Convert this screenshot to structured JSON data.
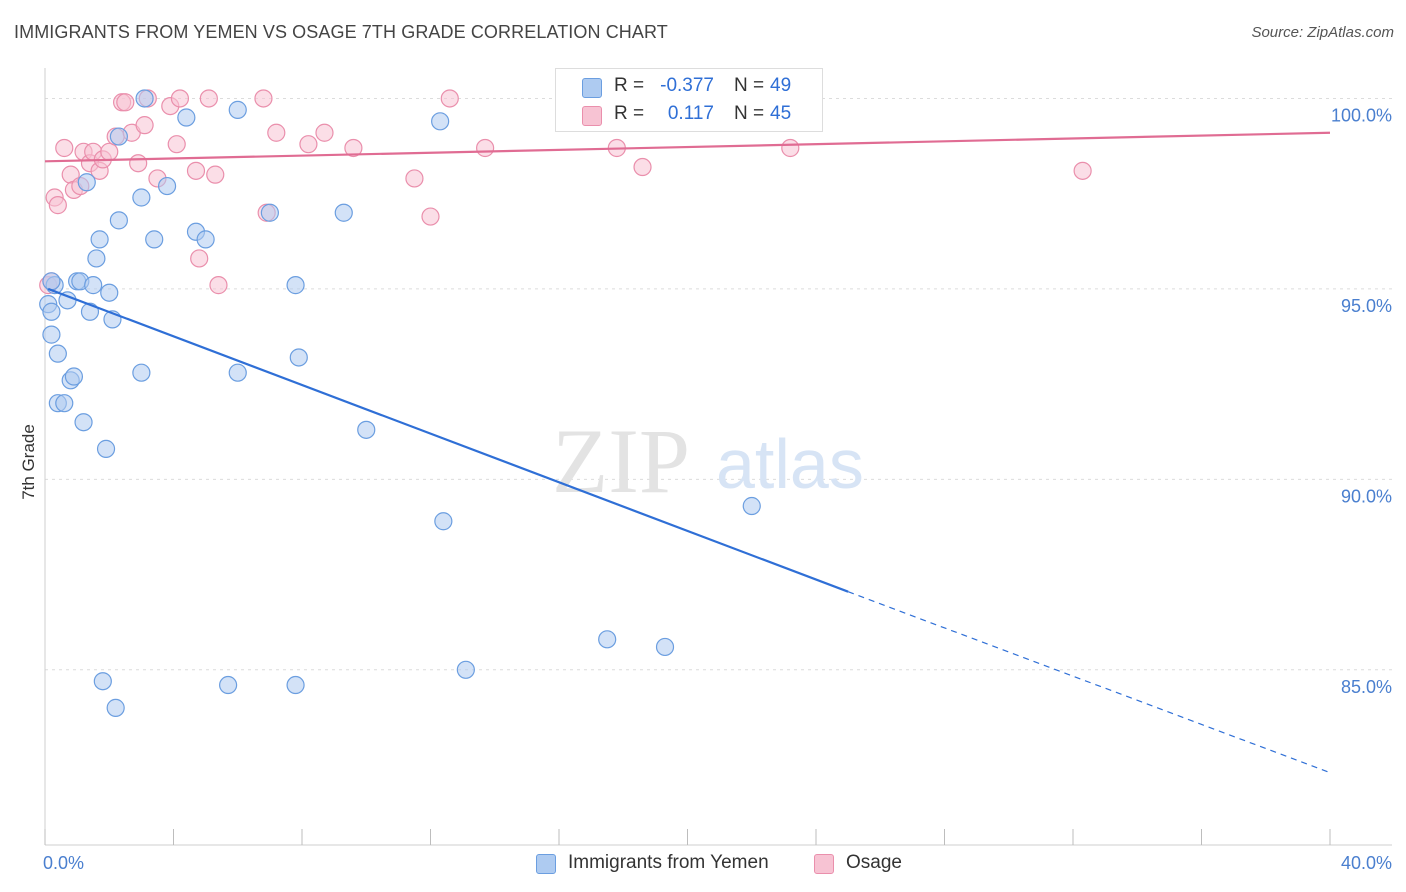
{
  "header": {
    "title": "IMMIGRANTS FROM YEMEN VS OSAGE 7TH GRADE CORRELATION CHART",
    "source": "Source: ZipAtlas.com"
  },
  "watermark": {
    "zip": "ZIP",
    "atlas": "atlas"
  },
  "legend_top": {
    "rows": [
      {
        "r_label": "R =",
        "r_value": "-0.377",
        "n_label": "N =",
        "n_value": "49"
      },
      {
        "r_label": "R =",
        "r_value": "0.117",
        "n_label": "N =",
        "n_value": "45"
      }
    ]
  },
  "legend_bottom": {
    "items": [
      {
        "label": "Immigrants from Yemen"
      },
      {
        "label": "Osage"
      }
    ]
  },
  "colors": {
    "blue_fill": "#aecbf1",
    "blue_stroke": "#6b9ee0",
    "blue_line": "#2f6fd6",
    "pink_fill": "#f7c3d3",
    "pink_stroke": "#ea8fac",
    "pink_line": "#e06c93",
    "tick_text": "#4a7fcf"
  },
  "chart_data": {
    "type": "scatter",
    "title": "IMMIGRANTS FROM YEMEN VS OSAGE 7TH GRADE CORRELATION CHART",
    "xlabel": "",
    "ylabel": "7th Grade",
    "xlim": [
      0,
      40
    ],
    "ylim": [
      80.4,
      100.8
    ],
    "x_tick_labels": [
      "0.0%",
      "40.0%"
    ],
    "y_ticks": [
      85,
      90,
      95,
      100
    ],
    "y_tick_labels": [
      "85.0%",
      "90.0%",
      "95.0%",
      "100.0%"
    ],
    "grid": true,
    "legend_position": "bottom",
    "series": [
      {
        "name": "Immigrants from Yemen",
        "color": "blue",
        "r": -0.377,
        "n": 49,
        "trend": {
          "x0": 0.1,
          "y0": 95.0,
          "x1": 25.0,
          "y1": 87.05,
          "dash_to_x": 40.0,
          "dash_to_y": 82.3
        },
        "points": [
          [
            0.1,
            94.6
          ],
          [
            0.2,
            94.4
          ],
          [
            0.2,
            93.8
          ],
          [
            0.3,
            95.1
          ],
          [
            0.4,
            93.3
          ],
          [
            0.4,
            92.0
          ],
          [
            0.6,
            92.0
          ],
          [
            0.7,
            94.7
          ],
          [
            0.8,
            92.6
          ],
          [
            0.9,
            92.7
          ],
          [
            1.0,
            95.2
          ],
          [
            1.1,
            95.2
          ],
          [
            1.2,
            91.5
          ],
          [
            1.3,
            97.8
          ],
          [
            1.4,
            94.4
          ],
          [
            1.5,
            95.1
          ],
          [
            1.6,
            95.8
          ],
          [
            1.7,
            96.3
          ],
          [
            1.9,
            90.8
          ],
          [
            2.0,
            94.9
          ],
          [
            2.1,
            94.2
          ],
          [
            2.3,
            96.8
          ],
          [
            2.3,
            99.0
          ],
          [
            3.0,
            97.4
          ],
          [
            3.0,
            92.8
          ],
          [
            3.1,
            100.0
          ],
          [
            3.4,
            96.3
          ],
          [
            3.8,
            97.7
          ],
          [
            4.4,
            99.5
          ],
          [
            4.7,
            96.5
          ],
          [
            5.0,
            96.3
          ],
          [
            6.0,
            92.8
          ],
          [
            6.0,
            99.7
          ],
          [
            7.0,
            97.0
          ],
          [
            7.8,
            95.1
          ],
          [
            7.9,
            93.2
          ],
          [
            9.3,
            97.0
          ],
          [
            10.0,
            91.3
          ],
          [
            12.3,
            99.4
          ],
          [
            12.4,
            88.9
          ],
          [
            13.1,
            85.0
          ],
          [
            17.5,
            85.8
          ],
          [
            19.3,
            85.6
          ],
          [
            22.0,
            89.3
          ],
          [
            1.8,
            84.7
          ],
          [
            2.2,
            84.0
          ],
          [
            5.7,
            84.6
          ],
          [
            7.8,
            84.6
          ],
          [
            0.2,
            95.2
          ]
        ]
      },
      {
        "name": "Osage",
        "color": "pink",
        "r": 0.117,
        "n": 45,
        "trend": {
          "x0": 0.0,
          "y0": 98.35,
          "x1": 40.0,
          "y1": 99.1
        },
        "points": [
          [
            0.1,
            95.1
          ],
          [
            0.3,
            97.4
          ],
          [
            0.4,
            97.2
          ],
          [
            0.6,
            98.7
          ],
          [
            0.8,
            98.0
          ],
          [
            0.9,
            97.6
          ],
          [
            1.1,
            97.7
          ],
          [
            1.2,
            98.6
          ],
          [
            1.4,
            98.3
          ],
          [
            1.5,
            98.6
          ],
          [
            1.7,
            98.1
          ],
          [
            1.8,
            98.4
          ],
          [
            2.0,
            98.6
          ],
          [
            2.2,
            99.0
          ],
          [
            2.4,
            99.9
          ],
          [
            2.5,
            99.9
          ],
          [
            2.7,
            99.1
          ],
          [
            2.9,
            98.3
          ],
          [
            3.1,
            99.3
          ],
          [
            3.2,
            100.0
          ],
          [
            3.5,
            97.9
          ],
          [
            3.9,
            99.8
          ],
          [
            4.1,
            98.8
          ],
          [
            4.2,
            100.0
          ],
          [
            4.7,
            98.1
          ],
          [
            4.8,
            95.8
          ],
          [
            5.1,
            100.0
          ],
          [
            5.3,
            98.0
          ],
          [
            5.4,
            95.1
          ],
          [
            6.8,
            100.0
          ],
          [
            6.9,
            97.0
          ],
          [
            7.2,
            99.1
          ],
          [
            8.2,
            98.8
          ],
          [
            8.7,
            99.1
          ],
          [
            9.6,
            98.7
          ],
          [
            11.5,
            97.9
          ],
          [
            12.0,
            96.9
          ],
          [
            12.6,
            100.0
          ],
          [
            13.7,
            98.7
          ],
          [
            17.8,
            98.7
          ],
          [
            18.6,
            98.2
          ],
          [
            22.4,
            100.0
          ],
          [
            23.2,
            98.7
          ],
          [
            32.3,
            98.1
          ],
          [
            0.2,
            95.2
          ]
        ]
      }
    ]
  }
}
